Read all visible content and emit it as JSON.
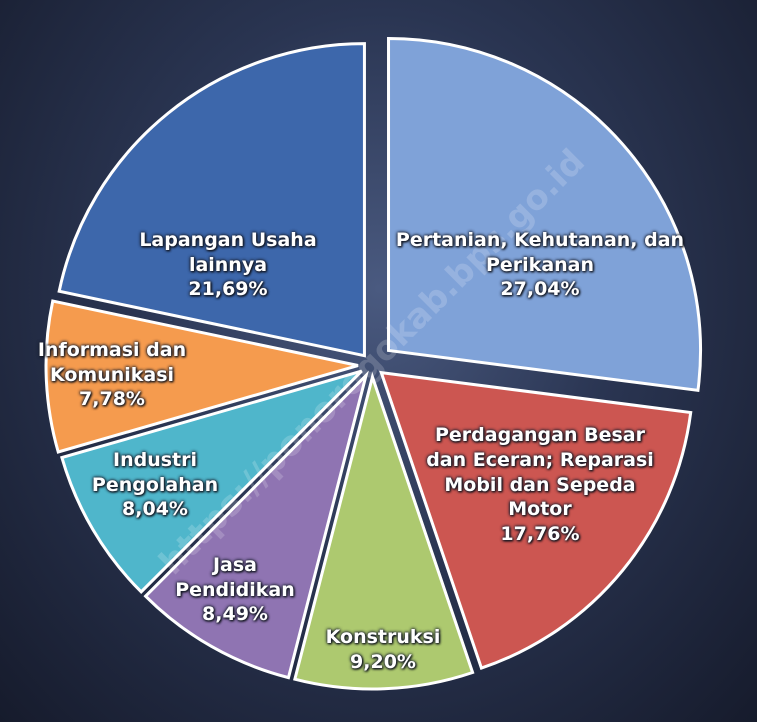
{
  "chart_data": {
    "type": "pie",
    "categories": [
      "Pertanian, Kehutanan, dan Perikanan",
      "Perdagangan Besar dan Eceran; Reparasi Mobil dan Sepeda Motor",
      "Konstruksi",
      "Jasa Pendidikan",
      "Industri Pengolahan",
      "Informasi dan Komunikasi",
      "Lapangan Usaha lainnya"
    ],
    "values": [
      27.04,
      17.76,
      9.2,
      8.49,
      8.04,
      7.78,
      21.69
    ],
    "value_labels": [
      "27,04%",
      "17,76%",
      "9,20%",
      "8,49%",
      "8,04%",
      "7,78%",
      "21,69%"
    ],
    "colors": [
      "#7fa2d8",
      "#cc5651",
      "#adc96f",
      "#8f74b2",
      "#4fb6cb",
      "#f59b4e",
      "#3d67ab"
    ],
    "watermark": "https://ponorogokab.bps.go.id"
  }
}
